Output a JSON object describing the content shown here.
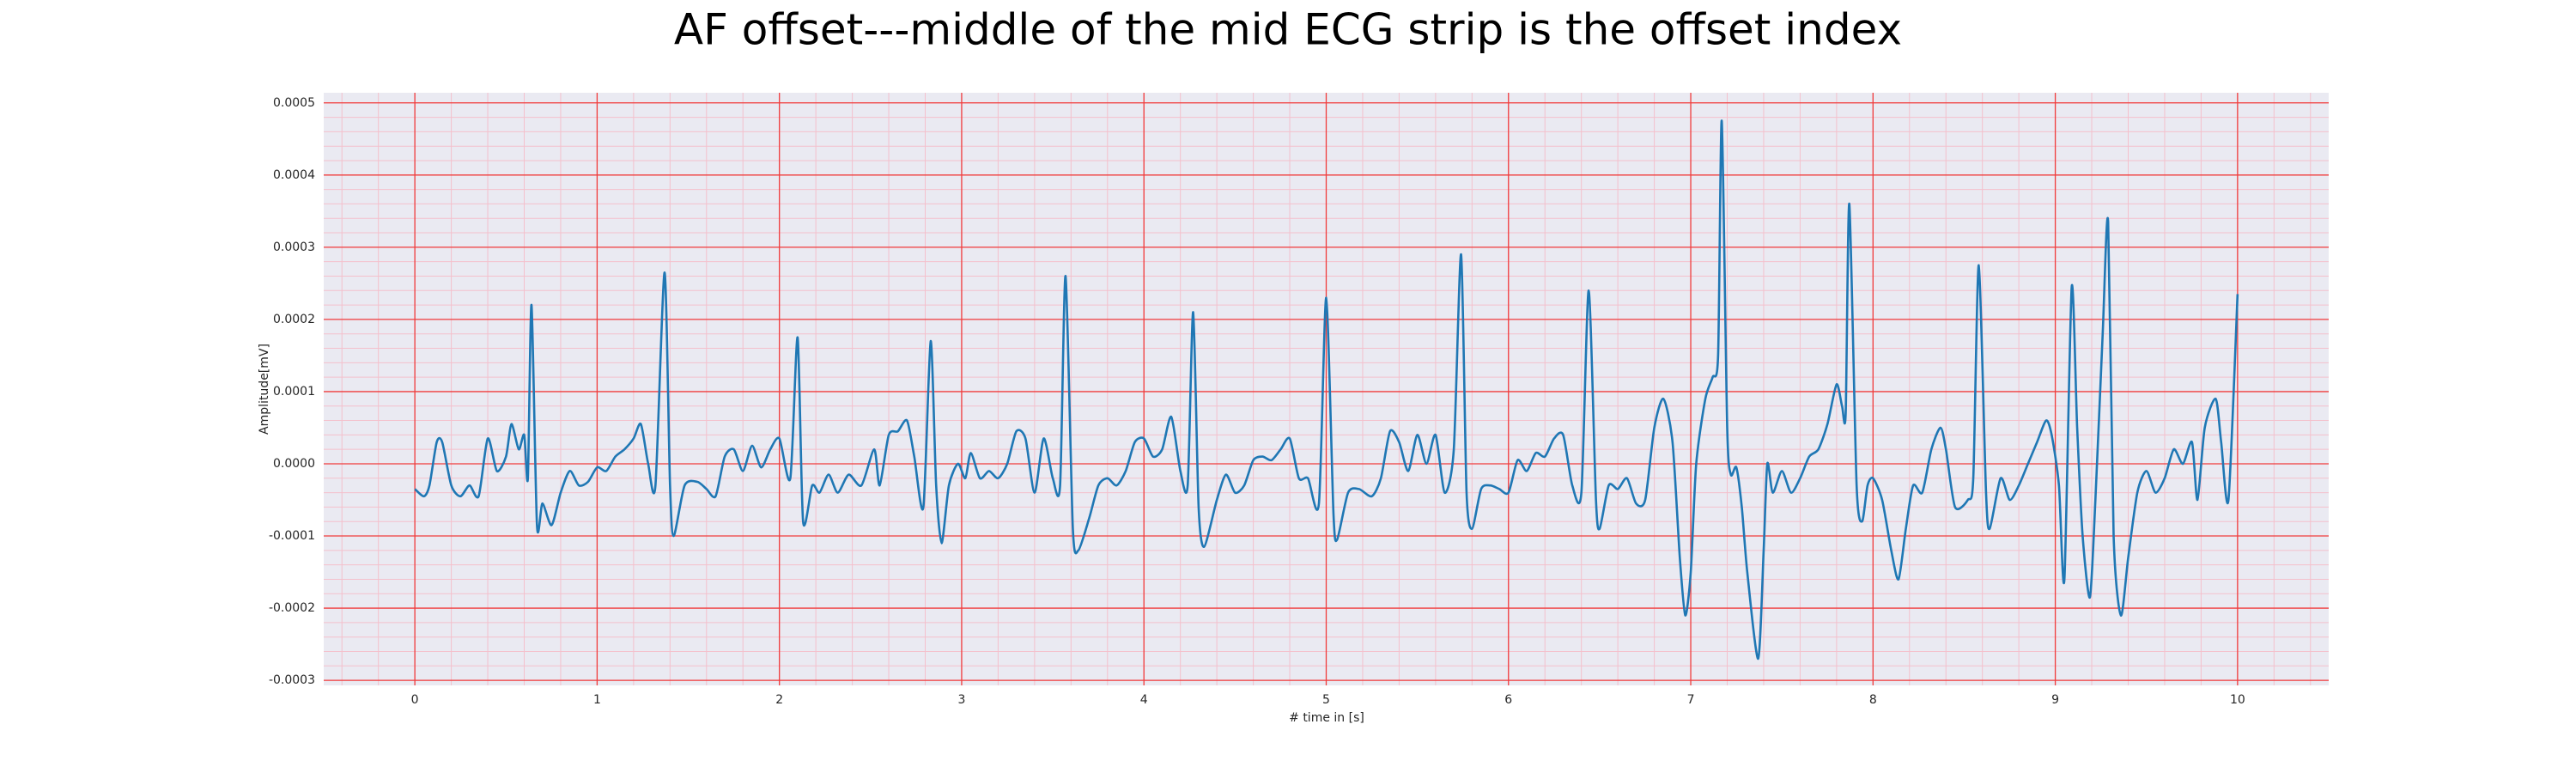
{
  "chart_data": {
    "type": "line",
    "title": "AF offset---middle of the mid ECG strip is the offset index",
    "xlabel": "# time in [s]",
    "ylabel": "Amplitude[mV]",
    "x": [
      0.0,
      0.05,
      0.08,
      0.12,
      0.15,
      0.2,
      0.25,
      0.3,
      0.35,
      0.4,
      0.45,
      0.5,
      0.53,
      0.57,
      0.6,
      0.62,
      0.64,
      0.67,
      0.7,
      0.75,
      0.8,
      0.85,
      0.9,
      0.95,
      1.0,
      1.05,
      1.1,
      1.15,
      1.2,
      1.24,
      1.28,
      1.32,
      1.37,
      1.4,
      1.42,
      1.48,
      1.55,
      1.6,
      1.65,
      1.7,
      1.75,
      1.8,
      1.85,
      1.9,
      1.95,
      2.0,
      2.06,
      2.1,
      2.13,
      2.18,
      2.22,
      2.27,
      2.32,
      2.38,
      2.45,
      2.52,
      2.55,
      2.6,
      2.65,
      2.7,
      2.74,
      2.79,
      2.83,
      2.86,
      2.89,
      2.93,
      2.98,
      3.02,
      3.05,
      3.1,
      3.15,
      3.2,
      3.25,
      3.3,
      3.35,
      3.4,
      3.45,
      3.5,
      3.54,
      3.57,
      3.61,
      3.64,
      3.7,
      3.75,
      3.8,
      3.85,
      3.9,
      3.95,
      4.0,
      4.05,
      4.1,
      4.15,
      4.2,
      4.24,
      4.27,
      4.3,
      4.33,
      4.4,
      4.45,
      4.5,
      4.55,
      4.6,
      4.65,
      4.7,
      4.75,
      4.8,
      4.85,
      4.9,
      4.96,
      5.0,
      5.04,
      5.06,
      5.12,
      5.18,
      5.25,
      5.3,
      5.35,
      5.4,
      5.45,
      5.5,
      5.55,
      5.6,
      5.65,
      5.7,
      5.74,
      5.77,
      5.8,
      5.85,
      5.9,
      5.95,
      6.0,
      6.05,
      6.1,
      6.15,
      6.2,
      6.25,
      6.3,
      6.35,
      6.4,
      6.44,
      6.48,
      6.5,
      6.55,
      6.6,
      6.65,
      6.7,
      6.75,
      6.8,
      6.85,
      6.9,
      6.94,
      6.97,
      7.0,
      7.03,
      7.08,
      7.12,
      7.15,
      7.17,
      7.2,
      7.22,
      7.25,
      7.28,
      7.31,
      7.37,
      7.4,
      7.42,
      7.45,
      7.5,
      7.55,
      7.6,
      7.65,
      7.7,
      7.75,
      7.8,
      7.83,
      7.85,
      7.87,
      7.91,
      7.94,
      7.97,
      8.0,
      8.05,
      8.1,
      8.14,
      8.18,
      8.22,
      8.27,
      8.32,
      8.37,
      8.4,
      8.45,
      8.52,
      8.55,
      8.58,
      8.62,
      8.64,
      8.7,
      8.75,
      8.8,
      8.85,
      8.9,
      8.95,
      8.98,
      9.02,
      9.05,
      9.09,
      9.12,
      9.15,
      9.19,
      9.22,
      9.26,
      9.29,
      9.32,
      9.36,
      9.4,
      9.45,
      9.5,
      9.55,
      9.6,
      9.65,
      9.7,
      9.75,
      9.78,
      9.82,
      9.88,
      9.91,
      9.95,
      10.0
    ],
    "series": [
      {
        "color": "#1f77b4",
        "values": [
          -3.5e-05,
          -4.5e-05,
          -3e-05,
          3e-05,
          3e-05,
          -3e-05,
          -4.5e-05,
          -3e-05,
          -4.5e-05,
          3.5e-05,
          -1e-05,
          1e-05,
          5.5e-05,
          2e-05,
          4e-05,
          -2e-05,
          0.00022,
          -8.5e-05,
          -5.5e-05,
          -8.5e-05,
          -4e-05,
          -1e-05,
          -3e-05,
          -2.5e-05,
          -5e-06,
          -1e-05,
          1e-05,
          2e-05,
          3.5e-05,
          5.5e-05,
          0.0,
          -3e-05,
          0.000265,
          -3e-05,
          -0.0001,
          -3e-05,
          -2.5e-05,
          -3.5e-05,
          -4.5e-05,
          1e-05,
          2e-05,
          -1e-05,
          2.5e-05,
          -5e-06,
          2e-05,
          3.5e-05,
          -2e-05,
          0.000175,
          -8e-05,
          -3e-05,
          -4e-05,
          -1.5e-05,
          -4e-05,
          -1.5e-05,
          -3e-05,
          2e-05,
          -3e-05,
          4e-05,
          4.5e-05,
          6e-05,
          1e-05,
          -6e-05,
          0.00017,
          -3e-05,
          -0.00011,
          -3e-05,
          0.0,
          -2e-05,
          1.5e-05,
          -2e-05,
          -1e-05,
          -2e-05,
          0.0,
          4.5e-05,
          3.5e-05,
          -4e-05,
          3.5e-05,
          -2e-05,
          -3e-05,
          0.00026,
          -9e-05,
          -0.00012,
          -7.5e-05,
          -3e-05,
          -2e-05,
          -3e-05,
          -1e-05,
          3e-05,
          3.5e-05,
          1e-05,
          2e-05,
          6.5e-05,
          -1e-05,
          -3e-05,
          0.00021,
          -6e-05,
          -0.000115,
          -5e-05,
          -1.5e-05,
          -4e-05,
          -3e-05,
          5e-06,
          1e-05,
          5e-06,
          2e-05,
          3.5e-05,
          -2e-05,
          -2e-05,
          -5.5e-05,
          0.00023,
          -7e-05,
          -0.000105,
          -4e-05,
          -3.5e-05,
          -4.5e-05,
          -2e-05,
          4.5e-05,
          3e-05,
          -1e-05,
          4e-05,
          0.0,
          4e-05,
          -4e-05,
          2e-05,
          0.00029,
          -4e-05,
          -9e-05,
          -3.5e-05,
          -3e-05,
          -3.5e-05,
          -4e-05,
          5e-06,
          -1e-05,
          1.5e-05,
          1e-05,
          3.5e-05,
          4e-05,
          -3e-05,
          -4e-05,
          0.00024,
          -5e-05,
          -9e-05,
          -3e-05,
          -3.5e-05,
          -2e-05,
          -5.5e-05,
          -5e-05,
          5e-05,
          9e-05,
          3e-05,
          -0.00013,
          -0.00021,
          -0.00015,
          0.0,
          9e-05,
          0.00012,
          0.00015,
          0.000475,
          5e-05,
          -1.5e-05,
          -5e-06,
          -6e-05,
          -0.00015,
          -0.00027,
          -0.00012,
          0.0,
          -4e-05,
          -1e-05,
          -4e-05,
          -2e-05,
          1e-05,
          2e-05,
          5.5e-05,
          0.00011,
          8e-05,
          7e-05,
          0.00036,
          -3e-05,
          -8e-05,
          -3e-05,
          -2e-05,
          -5e-05,
          -0.00012,
          -0.00016,
          -9e-05,
          -3e-05,
          -4e-05,
          2e-05,
          5e-05,
          2e-05,
          -6e-05,
          -5e-05,
          -2e-05,
          0.000275,
          -4e-05,
          -9e-05,
          -2e-05,
          -5e-05,
          -3e-05,
          0.0,
          3e-05,
          6e-05,
          4e-05,
          -3e-05,
          -0.00016,
          0.000245,
          5e-05,
          -0.0001,
          -0.000185,
          -5e-05,
          0.00018,
          0.000335,
          -0.0001,
          -0.00021,
          -0.00013,
          -4e-05,
          -1e-05,
          -4e-05,
          -2e-05,
          2e-05,
          0.0,
          3e-05,
          -5e-05,
          5e-05,
          9e-05,
          3e-05,
          -5e-05,
          0.000235
        ]
      }
    ],
    "xlim": [
      -0.5,
      10.5
    ],
    "ylim": [
      -0.000307,
      0.000514
    ],
    "xticks": [
      0,
      1,
      2,
      3,
      4,
      5,
      6,
      7,
      8,
      9,
      10
    ],
    "yticks": [
      -0.0003,
      -0.0002,
      -0.0001,
      {
        "value": 0,
        "label": "0.0000"
      },
      0.0001,
      0.0002,
      0.0003,
      0.0004,
      0.0005
    ],
    "grid": true,
    "grid_color": "#f03c3c",
    "minor_grid_color": "#f4c0cc",
    "minor_divisions": 5,
    "background": "#eaeaf2"
  }
}
